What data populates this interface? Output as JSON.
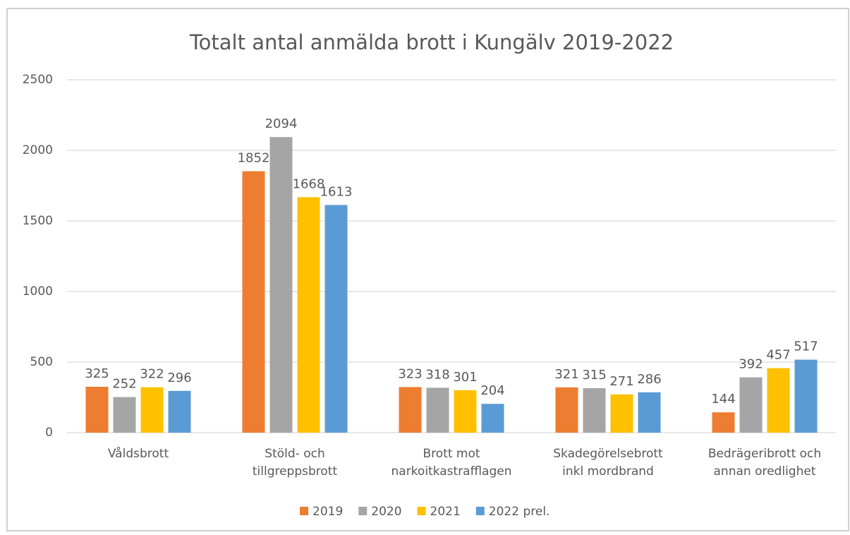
{
  "chart_data": {
    "type": "bar",
    "title": "Totalt antal anmälda brott i Kungälv 2019-2022",
    "categories": [
      "Våldsbrott",
      "Stöld- och\ntillgreppsbrott",
      "Brott mot\nnarkoitkastrafflagen",
      "Skadegörelsebrott\ninkl mordbrand",
      "Bedrägeribrott och\nannan oredlighet"
    ],
    "series": [
      {
        "name": "2019",
        "color": "#ed7d31",
        "values": [
          325,
          1852,
          323,
          321,
          144
        ]
      },
      {
        "name": "2020",
        "color": "#a5a5a5",
        "values": [
          252,
          2094,
          318,
          315,
          392
        ]
      },
      {
        "name": "2021",
        "color": "#ffc000",
        "values": [
          322,
          1668,
          301,
          271,
          457
        ]
      },
      {
        "name": "2022 prel.",
        "color": "#5b9bd5",
        "values": [
          296,
          1613,
          204,
          286,
          517
        ]
      }
    ],
    "ylim": [
      0,
      2500
    ],
    "yticks": [
      0,
      500,
      1000,
      1500,
      2000,
      2500
    ],
    "grid": true,
    "legend": "bottom"
  }
}
